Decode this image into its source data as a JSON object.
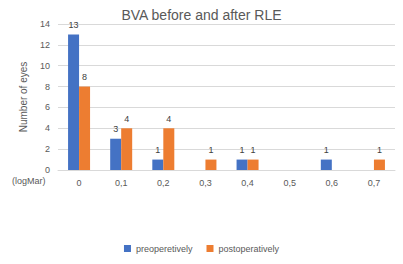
{
  "chart_data": {
    "type": "bar",
    "title": "BVA before and after RLE",
    "y_label": "Number of eyes",
    "x_label": "(logMar)",
    "categories": [
      "0",
      "0,1",
      "0,2",
      "0,3",
      "0,4",
      "0,5",
      "0,6",
      "0,7"
    ],
    "series": [
      {
        "name": "preoperetively",
        "color": "#4472c4",
        "values": [
          13,
          3,
          1,
          null,
          1,
          null,
          1,
          null
        ]
      },
      {
        "name": "postoperatively",
        "color": "#ed7d31",
        "values": [
          8,
          4,
          4,
          1,
          1,
          null,
          null,
          1
        ]
      }
    ],
    "ylim": [
      0,
      14
    ],
    "yticks": [
      0,
      2,
      4,
      6,
      8,
      10,
      12,
      14
    ],
    "grid": true,
    "legend": "bottom",
    "data_labels": true
  }
}
